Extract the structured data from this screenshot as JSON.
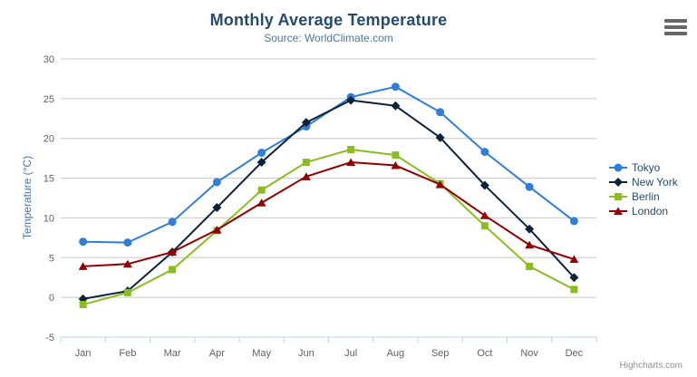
{
  "chart_data": {
    "type": "line",
    "title": "Monthly Average Temperature",
    "subtitle": "Source: WorldClimate.com",
    "xlabel": "",
    "ylabel": "Temperature (°C)",
    "ylim": [
      -5,
      30
    ],
    "ytick_step": 5,
    "grid": true,
    "legend_position": "right",
    "categories": [
      "Jan",
      "Feb",
      "Mar",
      "Apr",
      "May",
      "Jun",
      "Jul",
      "Aug",
      "Sep",
      "Oct",
      "Nov",
      "Dec"
    ],
    "series": [
      {
        "name": "Tokyo",
        "color": "#2f7ed8",
        "marker": "circle",
        "values": [
          7.0,
          6.9,
          9.5,
          14.5,
          18.2,
          21.5,
          25.2,
          26.5,
          23.3,
          18.3,
          13.9,
          9.6
        ]
      },
      {
        "name": "New York",
        "color": "#0d233a",
        "marker": "diamond",
        "values": [
          -0.2,
          0.8,
          5.7,
          11.3,
          17.0,
          22.0,
          24.8,
          24.1,
          20.1,
          14.1,
          8.6,
          2.5
        ]
      },
      {
        "name": "Berlin",
        "color": "#8bbc21",
        "marker": "square",
        "values": [
          -0.9,
          0.6,
          3.5,
          8.4,
          13.5,
          17.0,
          18.6,
          17.9,
          14.3,
          9.0,
          3.9,
          1.0
        ]
      },
      {
        "name": "London",
        "color": "#910000",
        "marker": "triangle",
        "values": [
          3.9,
          4.2,
          5.7,
          8.5,
          11.9,
          15.2,
          17.0,
          16.6,
          14.2,
          10.3,
          6.6,
          4.8
        ]
      }
    ]
  },
  "credit": {
    "label": "Highcharts.com"
  },
  "icons": {
    "context_menu": "hamburger-icon"
  },
  "colors": {
    "background": "#ffffff",
    "title": "#274b6d",
    "subtitle": "#4d759e",
    "axis_title": "#4d759e",
    "axis_labels": "#606060",
    "grid_line": "#c8c8c8",
    "axis_line": "#c0d0e0",
    "legend_text": "#274b6d",
    "credit": "#909090",
    "menu_icon": "#666666"
  }
}
